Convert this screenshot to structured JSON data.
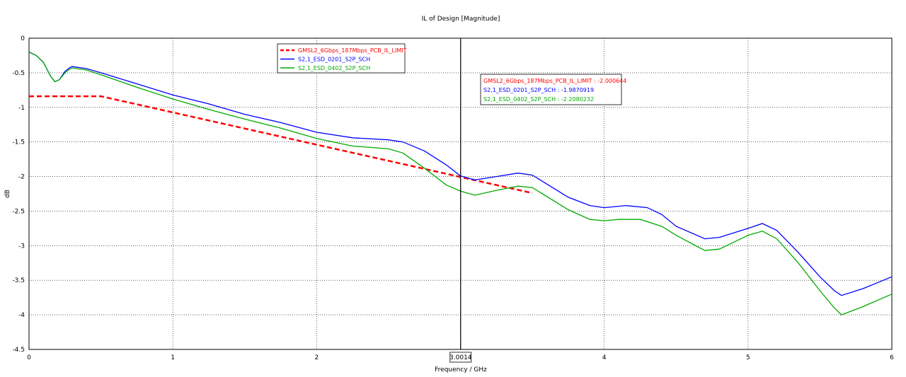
{
  "chart_data": {
    "type": "line",
    "title": "IL of Design [Magnitude]",
    "xlabel": "Frequency / GHz",
    "ylabel": "dB",
    "xlim": [
      0,
      6
    ],
    "ylim": [
      -4.5,
      0
    ],
    "x_ticks": [
      "0",
      "1",
      "2",
      "3",
      "4",
      "5",
      "6"
    ],
    "y_ticks": [
      "0",
      "-0.5",
      "-1",
      "-1.5",
      "-2",
      "-2.5",
      "-3",
      "-3.5",
      "-4",
      "-4.5"
    ],
    "grid": true,
    "legend_placement": "top-center",
    "series": [
      {
        "name": "GMSL2_6Gbps_187Mbps_PCB_IL_LIMIT",
        "color": "#ff0000",
        "style": "dashed",
        "points": [
          [
            0,
            -0.84
          ],
          [
            0.5,
            -0.84
          ],
          [
            3.5,
            -2.24
          ]
        ]
      },
      {
        "name": "S2,1_ESD_0201_S2P_SCH",
        "color": "#0000ff",
        "style": "solid",
        "points": [
          [
            0,
            -0.2
          ],
          [
            0.05,
            -0.25
          ],
          [
            0.1,
            -0.35
          ],
          [
            0.15,
            -0.55
          ],
          [
            0.18,
            -0.63
          ],
          [
            0.21,
            -0.6
          ],
          [
            0.25,
            -0.48
          ],
          [
            0.28,
            -0.43
          ],
          [
            0.3,
            -0.41
          ],
          [
            0.4,
            -0.44
          ],
          [
            0.5,
            -0.5
          ],
          [
            0.75,
            -0.66
          ],
          [
            1.0,
            -0.82
          ],
          [
            1.25,
            -0.95
          ],
          [
            1.5,
            -1.1
          ],
          [
            1.75,
            -1.22
          ],
          [
            2.0,
            -1.36
          ],
          [
            2.25,
            -1.44
          ],
          [
            2.5,
            -1.47
          ],
          [
            2.6,
            -1.5
          ],
          [
            2.75,
            -1.63
          ],
          [
            2.9,
            -1.83
          ],
          [
            3.0,
            -1.99
          ],
          [
            3.1,
            -2.05
          ],
          [
            3.25,
            -2.0
          ],
          [
            3.4,
            -1.95
          ],
          [
            3.5,
            -1.98
          ],
          [
            3.75,
            -2.3
          ],
          [
            3.9,
            -2.42
          ],
          [
            4.0,
            -2.45
          ],
          [
            4.15,
            -2.42
          ],
          [
            4.3,
            -2.45
          ],
          [
            4.4,
            -2.55
          ],
          [
            4.5,
            -2.72
          ],
          [
            4.7,
            -2.9
          ],
          [
            4.8,
            -2.88
          ],
          [
            5.0,
            -2.75
          ],
          [
            5.1,
            -2.68
          ],
          [
            5.2,
            -2.78
          ],
          [
            5.35,
            -3.1
          ],
          [
            5.5,
            -3.45
          ],
          [
            5.6,
            -3.65
          ],
          [
            5.65,
            -3.72
          ],
          [
            5.8,
            -3.62
          ],
          [
            6.0,
            -3.45
          ]
        ]
      },
      {
        "name": "S2,1_ESD_0402_S2P_SCH",
        "color": "#00aa00",
        "style": "solid",
        "points": [
          [
            0,
            -0.2
          ],
          [
            0.05,
            -0.25
          ],
          [
            0.1,
            -0.35
          ],
          [
            0.15,
            -0.55
          ],
          [
            0.18,
            -0.63
          ],
          [
            0.21,
            -0.6
          ],
          [
            0.25,
            -0.5
          ],
          [
            0.28,
            -0.45
          ],
          [
            0.3,
            -0.43
          ],
          [
            0.4,
            -0.46
          ],
          [
            0.5,
            -0.53
          ],
          [
            0.75,
            -0.71
          ],
          [
            1.0,
            -0.88
          ],
          [
            1.25,
            -1.03
          ],
          [
            1.5,
            -1.17
          ],
          [
            1.75,
            -1.3
          ],
          [
            2.0,
            -1.45
          ],
          [
            2.25,
            -1.56
          ],
          [
            2.5,
            -1.6
          ],
          [
            2.6,
            -1.66
          ],
          [
            2.75,
            -1.88
          ],
          [
            2.9,
            -2.12
          ],
          [
            3.0,
            -2.21
          ],
          [
            3.1,
            -2.27
          ],
          [
            3.25,
            -2.2
          ],
          [
            3.4,
            -2.14
          ],
          [
            3.5,
            -2.16
          ],
          [
            3.75,
            -2.48
          ],
          [
            3.9,
            -2.62
          ],
          [
            4.0,
            -2.64
          ],
          [
            4.1,
            -2.62
          ],
          [
            4.25,
            -2.62
          ],
          [
            4.4,
            -2.72
          ],
          [
            4.5,
            -2.85
          ],
          [
            4.7,
            -3.07
          ],
          [
            4.8,
            -3.05
          ],
          [
            5.0,
            -2.85
          ],
          [
            5.1,
            -2.79
          ],
          [
            5.2,
            -2.9
          ],
          [
            5.35,
            -3.25
          ],
          [
            5.5,
            -3.65
          ],
          [
            5.6,
            -3.9
          ],
          [
            5.65,
            -4.0
          ],
          [
            5.8,
            -3.88
          ],
          [
            6.0,
            -3.7
          ]
        ]
      }
    ],
    "marker": {
      "x": 3.0014,
      "label": "3.0014",
      "readouts": [
        {
          "text": "GMSL2_6Gbps_187Mbps_PCB_IL_LIMIT : -2.000644",
          "color": "#ff0000"
        },
        {
          "text": "S2,1_ESD_0201_S2P_SCH : -1.9870919",
          "color": "#0000ff"
        },
        {
          "text": "S2,1_ESD_0402_S2P_SCH : -2.2080232",
          "color": "#00aa00"
        }
      ]
    }
  }
}
